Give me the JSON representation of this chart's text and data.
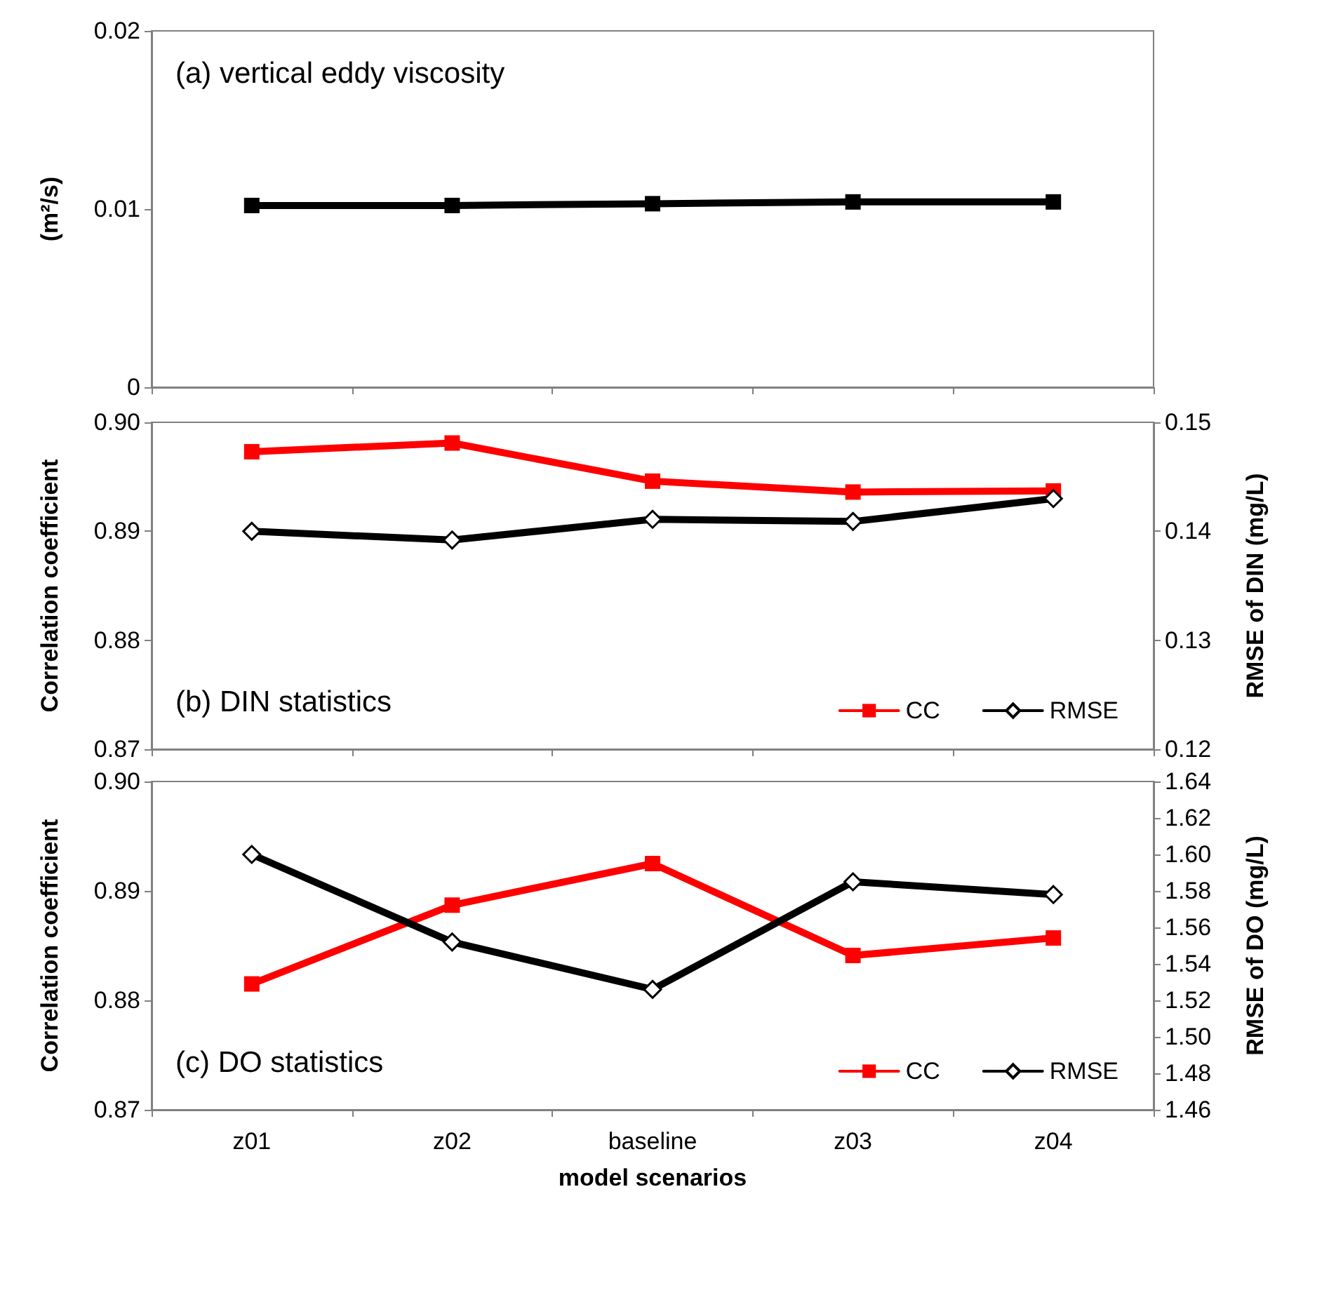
{
  "chart_data": [
    {
      "type": "line",
      "annotations": [
        "(a) vertical eddy viscosity"
      ],
      "ylabel": "(m²/s)",
      "categories": [
        null,
        null,
        null,
        null,
        null
      ],
      "tick_labels": "y",
      "ylim": [
        0,
        0.02
      ],
      "yticks": [
        0,
        0.01,
        0.02
      ],
      "series": [
        {
          "color": "#000000",
          "marker": "square",
          "values": [
            0.0102,
            0.0102,
            0.0103,
            0.0104,
            0.0104
          ]
        }
      ]
    },
    {
      "type": "line",
      "annotations": [
        "(b) DIN statistics"
      ],
      "ylabel": "Correlation coefficient",
      "y2label": "RMSE of DIN (mg/L)",
      "categories": [
        null,
        null,
        null,
        null,
        null
      ],
      "tick_labels": "y",
      "legend": "bottom right",
      "ylim": [
        0.87,
        0.9
      ],
      "yticks": [
        0.87,
        0.88,
        0.89,
        {
          "value": 0.9,
          "label": "0.90"
        }
      ],
      "y2lim": [
        0.12,
        0.15
      ],
      "y2ticks": [
        0.12,
        0.13,
        0.14,
        0.15
      ],
      "series": [
        {
          "name": "CC",
          "color": "#ff0000",
          "marker": "square",
          "values": [
            0.8973,
            0.8981,
            0.8946,
            0.8936,
            0.8937
          ]
        },
        {
          "name": "RMSE",
          "color": "#000000",
          "marker": "diamond",
          "axis": "y2",
          "values": [
            0.14,
            0.1392,
            0.1411,
            0.1409,
            0.143
          ]
        }
      ]
    },
    {
      "type": "line",
      "annotations": [
        "(c) DO statistics"
      ],
      "xlabel": "model scenarios",
      "ylabel": "Correlation coefficient",
      "y2label": "RMSE of DO (mg/L)",
      "categories": [
        "z01",
        "z02",
        "baseline",
        "z03",
        "z04"
      ],
      "legend": "bottom right",
      "ylim": [
        0.87,
        0.9
      ],
      "yticks": [
        0.87,
        0.88,
        0.89,
        {
          "value": 0.9,
          "label": "0.90"
        }
      ],
      "y2lim": [
        1.46,
        1.64
      ],
      "y2ticks": [
        1.46,
        1.48,
        {
          "value": 1.5,
          "label": "1.50"
        },
        1.52,
        1.54,
        1.56,
        1.58,
        {
          "value": 1.6,
          "label": "1.60"
        },
        1.62,
        1.64
      ],
      "series": [
        {
          "name": "CC",
          "color": "#ff0000",
          "marker": "square",
          "values": [
            0.8815,
            0.8887,
            0.8925,
            0.8841,
            0.8857
          ]
        },
        {
          "name": "RMSE",
          "color": "#000000",
          "marker": "diamond",
          "axis": "y2",
          "values": [
            1.6,
            1.552,
            1.526,
            1.585,
            1.578
          ]
        }
      ]
    }
  ]
}
